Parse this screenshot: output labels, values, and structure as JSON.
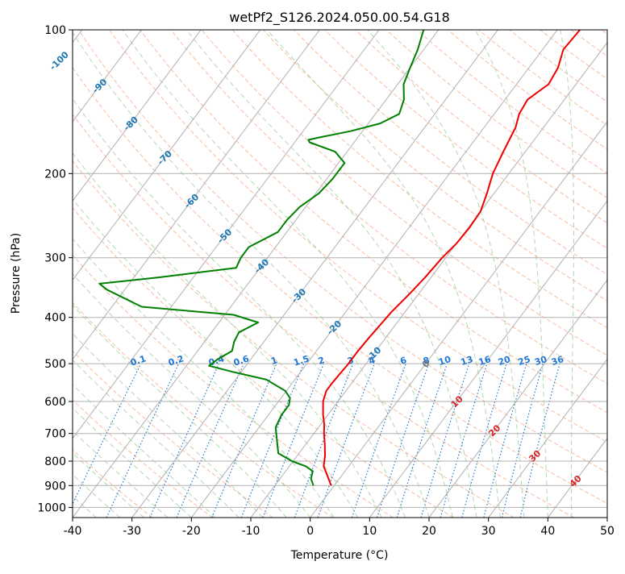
{
  "chart_data": {
    "type": "line",
    "subtype": "skew-t log-p",
    "title": "wetPf2_S126.2024.050.00.54.G18",
    "xlabel": "Temperature (°C)",
    "ylabel": "Pressure (hPa)",
    "xlim": [
      -40,
      50
    ],
    "ylim": [
      1050,
      100
    ],
    "y_scale": "log",
    "grid": true,
    "x_ticks": [
      -40,
      -30,
      -20,
      -10,
      0,
      10,
      20,
      30,
      40,
      50
    ],
    "y_ticks": [
      100,
      200,
      300,
      400,
      500,
      600,
      700,
      800,
      900,
      1000
    ],
    "skew": 0.75,
    "colors": {
      "temperature": "#ee0000",
      "dewpoint": "#008000",
      "dry_adiabats": "#f4a582",
      "moist_adiabats": "#8fc98f",
      "mixing_ratio": "#1f77d4",
      "isotherm_labels": "#1f77b4",
      "red_labels": "#d62728",
      "grey_label": "#777777",
      "grid": "#b0b0b0"
    },
    "isotherm_labels": [
      "-100",
      "-90",
      "-80",
      "-70",
      "-60",
      "-50",
      "-40",
      "-30",
      "-20",
      "-10",
      "0",
      "10",
      "20",
      "30",
      "40"
    ],
    "mixing_ratio_labels": [
      "0.1",
      "0.2",
      "0.4",
      "0.6",
      "1",
      "1.5",
      "2",
      "3",
      "4",
      "6",
      "8",
      "10",
      "13",
      "16",
      "20",
      "25",
      "30",
      "36"
    ],
    "series": [
      {
        "name": "temperature",
        "values": [
          [
            900,
            -0.5
          ],
          [
            860,
            -2.3
          ],
          [
            820,
            -4.2
          ],
          [
            780,
            -5.3
          ],
          [
            740,
            -6.7
          ],
          [
            700,
            -8.3
          ],
          [
            670,
            -9.4
          ],
          [
            640,
            -10.8
          ],
          [
            600,
            -12.5
          ],
          [
            570,
            -13.3
          ],
          [
            550,
            -13.3
          ],
          [
            530,
            -13.2
          ],
          [
            500,
            -13.0
          ],
          [
            470,
            -13.0
          ],
          [
            440,
            -12.8
          ],
          [
            410,
            -12.5
          ],
          [
            390,
            -12.3
          ],
          [
            360,
            -11.6
          ],
          [
            330,
            -11.0
          ],
          [
            300,
            -10.6
          ],
          [
            280,
            -10.0
          ],
          [
            260,
            -9.8
          ],
          [
            240,
            -10.0
          ],
          [
            220,
            -11.2
          ],
          [
            200,
            -12.7
          ],
          [
            180,
            -13.7
          ],
          [
            160,
            -14.7
          ],
          [
            150,
            -15.8
          ],
          [
            140,
            -16.2
          ],
          [
            130,
            -14.6
          ],
          [
            120,
            -15.1
          ],
          [
            110,
            -16.5
          ],
          [
            100,
            -16.2
          ]
        ]
      },
      {
        "name": "dewpoint",
        "values": [
          [
            900,
            -3.5
          ],
          [
            870,
            -4.8
          ],
          [
            840,
            -5.4
          ],
          [
            820,
            -7.2
          ],
          [
            800,
            -10.2
          ],
          [
            770,
            -13.5
          ],
          [
            720,
            -15.5
          ],
          [
            680,
            -17.2
          ],
          [
            640,
            -17.8
          ],
          [
            610,
            -17.8
          ],
          [
            590,
            -18.5
          ],
          [
            570,
            -20.2
          ],
          [
            540,
            -24.8
          ],
          [
            520,
            -31.5
          ],
          [
            505,
            -36.2
          ],
          [
            490,
            -35.6
          ],
          [
            470,
            -34.2
          ],
          [
            450,
            -35.0
          ],
          [
            430,
            -35.4
          ],
          [
            410,
            -33.4
          ],
          [
            395,
            -38.5
          ],
          [
            380,
            -55.0
          ],
          [
            350,
            -63.0
          ],
          [
            340,
            -65.0
          ],
          [
            330,
            -56.0
          ],
          [
            315,
            -44.0
          ],
          [
            300,
            -44.5
          ],
          [
            285,
            -44.5
          ],
          [
            265,
            -41.5
          ],
          [
            250,
            -41.5
          ],
          [
            235,
            -41.0
          ],
          [
            220,
            -39.5
          ],
          [
            205,
            -39.0
          ],
          [
            190,
            -39.0
          ],
          [
            180,
            -42.0
          ],
          [
            172,
            -47.5
          ],
          [
            170,
            -48.0
          ],
          [
            168,
            -46.5
          ],
          [
            163,
            -42.0
          ],
          [
            157,
            -38.0
          ],
          [
            150,
            -36.0
          ],
          [
            140,
            -37.0
          ],
          [
            130,
            -39.0
          ],
          [
            120,
            -40.0
          ],
          [
            110,
            -41.0
          ],
          [
            100,
            -42.5
          ]
        ]
      }
    ]
  }
}
